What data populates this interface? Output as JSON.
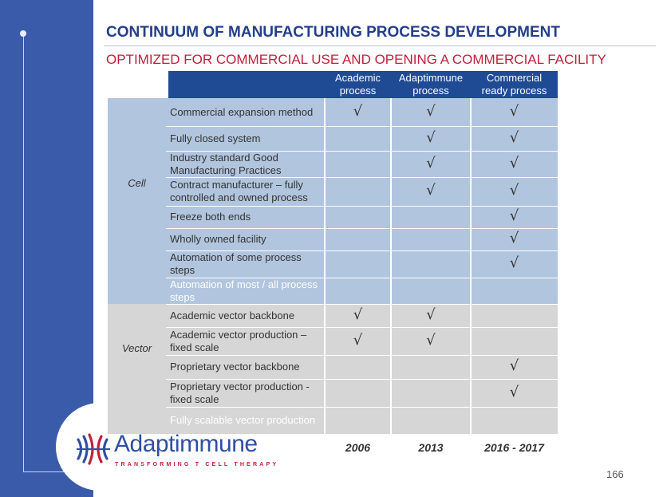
{
  "title": "CONTINUUM OF MANUFACTURING PROCESS DEVELOPMENT",
  "subtitle": "OPTIMIZED FOR COMMERCIAL USE AND OPENING A COMMERCIAL FACILITY",
  "columns": [
    "Academic\nprocess",
    "Adaptimmune\nprocess",
    "Commercial\nready process"
  ],
  "groups": {
    "cell": "Cell",
    "vector": "Vector"
  },
  "rows": [
    {
      "label": "Commercial expansion method",
      "checks": [
        "√",
        "√",
        "√"
      ]
    },
    {
      "label": "Fully closed system",
      "checks": [
        "",
        "√",
        "√"
      ]
    },
    {
      "label": "Industry standard Good Manufacturing Practices",
      "checks": [
        "",
        "√",
        "√"
      ]
    },
    {
      "label": "Contract manufacturer – fully controlled and owned process",
      "checks": [
        "",
        "√",
        "√"
      ]
    },
    {
      "label": "Freeze both ends",
      "checks": [
        "",
        "",
        "√"
      ]
    },
    {
      "label": "Wholly owned facility",
      "checks": [
        "",
        "",
        "√"
      ]
    },
    {
      "label": "Automation of some process steps",
      "checks": [
        "",
        "",
        "√"
      ]
    },
    {
      "label": "Automation of most / all process steps",
      "checks": [
        "",
        "",
        ""
      ]
    },
    {
      "label": "Academic vector backbone",
      "checks": [
        "√",
        "√",
        ""
      ]
    },
    {
      "label": "Academic vector production – fixed scale",
      "checks": [
        "√",
        "√",
        ""
      ]
    },
    {
      "label": "Proprietary vector backbone",
      "checks": [
        "",
        "",
        "√"
      ]
    },
    {
      "label": "Proprietary vector production - fixed scale",
      "checks": [
        "",
        "",
        "√"
      ]
    },
    {
      "label": "Fully scalable vector production",
      "checks": [
        "",
        "",
        ""
      ]
    }
  ],
  "years": [
    "2006",
    "2013",
    "2016 - 2017"
  ],
  "logo": {
    "name": "Adaptimmune",
    "tagline": "TRANSFORMING T CELL THERAPY"
  },
  "page_number": "166",
  "colors": {
    "sidebar": "#3a5ba9",
    "title": "#233e8b",
    "subtitle": "#c0203c",
    "header": "#1f4a94",
    "cell_band": "#b1c5de",
    "vector_band": "#d6d6d6"
  }
}
